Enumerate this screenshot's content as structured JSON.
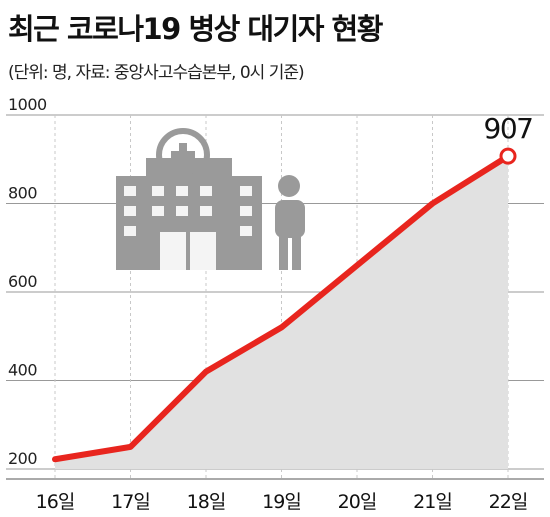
{
  "title": "최근 코로나19 병상 대기자 현황",
  "subtitle": "(단위: 명, 자료: 중앙사고수습본부, 0시 기준)",
  "colors": {
    "line": "#e8251e",
    "area": "#e1e1e1",
    "icon": "#9a9a9a",
    "grid": "#999999"
  },
  "icons": [
    "hospital-building-icon",
    "person-icon"
  ],
  "chart_data": {
    "type": "area",
    "categories": [
      "16일",
      "17일",
      "18일",
      "19일",
      "20일",
      "21일",
      "22일"
    ],
    "series": [
      {
        "values": [
          222,
          250,
          420,
          520,
          660,
          800,
          907
        ]
      }
    ],
    "ylim": [
      200,
      1000
    ],
    "yticks": [
      "200",
      "400",
      "600",
      "800",
      "1000"
    ],
    "annotations": [
      {
        "category": "22일",
        "label": "907"
      }
    ],
    "grid": true
  }
}
